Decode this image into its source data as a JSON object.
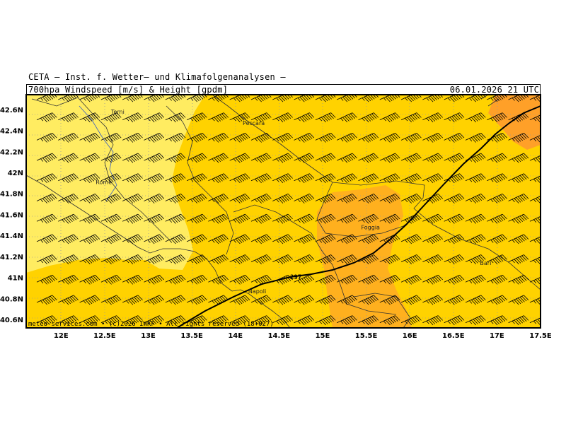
{
  "header": {
    "provider": "CETA – Inst. f. Wetter– und Klimafolgenanalysen –",
    "product": "700hpa Windspeed [m/s] & Height [gpdm]",
    "valid_time": "06.01.2026 21 UTC"
  },
  "axes": {
    "lon_labels": [
      "12E",
      "12.5E",
      "13E",
      "13.5E",
      "14E",
      "14.5E",
      "15E",
      "15.5E",
      "16E",
      "16.5E",
      "17E",
      "17.5E"
    ],
    "lat_labels": [
      "42.6N",
      "42.4N",
      "42.2N",
      "42N",
      "41.8N",
      "41.6N",
      "41.4N",
      "41.2N",
      "41N",
      "40.8N",
      "40.6N"
    ],
    "lon_range": [
      11.6,
      17.5
    ],
    "lat_range": [
      40.52,
      42.74
    ]
  },
  "cities": [
    {
      "name": "Terni",
      "lon": 12.65,
      "lat": 42.56
    },
    {
      "name": "Pescara",
      "lon": 14.21,
      "lat": 42.45
    },
    {
      "name": "Rome",
      "lon": 12.49,
      "lat": 41.89
    },
    {
      "name": "Foggia",
      "lon": 15.55,
      "lat": 41.46
    },
    {
      "name": "Bari",
      "lon": 16.87,
      "lat": 41.12
    },
    {
      "name": "Napoli",
      "lon": 14.25,
      "lat": 40.85
    }
  ],
  "contour": {
    "label": "297",
    "value": 297,
    "unit": "gpdm"
  },
  "wind": {
    "direction_deg": 245,
    "barb_kt": 65
  },
  "colors": {
    "light": "#FFEC61",
    "mid": "#FFD200",
    "dark": "#FFB01E",
    "darker": "#FFA028",
    "border": "#000000"
  },
  "credit": "meteo-services.com • (c)2026 IWKF • All rights reserved (18+027)"
}
